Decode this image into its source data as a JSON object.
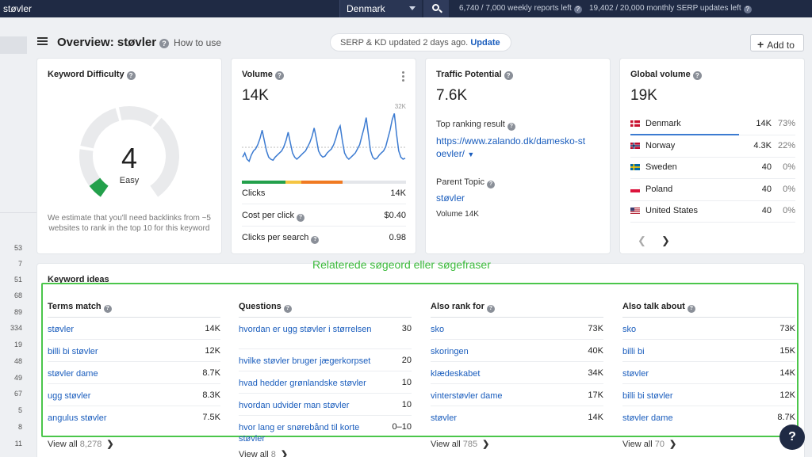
{
  "topbar": {
    "search_value": "støvler",
    "country": "Denmark",
    "weekly_quota": "6,740 / 7,000 weekly reports left",
    "monthly_quota": "19,402 / 20,000 monthly SERP updates left"
  },
  "rail_numbers": [
    "53",
    "7",
    "51",
    "68",
    "89",
    "334",
    "19",
    "48",
    "49",
    "67",
    "5",
    "8",
    "11"
  ],
  "header": {
    "title": "Overview: støvler",
    "how_to_use": "How to use",
    "serp_text": "SERP & KD updated 2 days ago.",
    "serp_update": "Update",
    "add_to": "Add to"
  },
  "kd": {
    "title": "Keyword Difficulty",
    "value": "4",
    "label": "Easy",
    "note": "We estimate that you'll need backlinks from ~5 websites to rank in the top 10 for this keyword",
    "score": 4
  },
  "volume": {
    "title": "Volume",
    "value": "14K",
    "chart_max_label": "32K",
    "rows": [
      {
        "label": "Clicks",
        "value": "14K"
      },
      {
        "label": "Cost per click",
        "value": "$0.40"
      },
      {
        "label": "Clicks per search",
        "value": "0.98"
      }
    ]
  },
  "traffic": {
    "title": "Traffic Potential",
    "value": "7.6K",
    "top_ranking_label": "Top ranking result",
    "top_ranking_url": "https://www.zalando.dk/damesko-støvler/",
    "top_ranking_url_line1": "https://www.zalando.dk/damesko-st",
    "top_ranking_url_line2": "oevler/",
    "parent_topic_label": "Parent Topic",
    "parent_topic": "støvler",
    "parent_volume": "Volume 14K"
  },
  "global": {
    "title": "Global volume",
    "value": "19K",
    "countries": [
      {
        "name": "Denmark",
        "value": "14K",
        "pct": "73%",
        "share": 0.73
      },
      {
        "name": "Norway",
        "value": "4.3K",
        "pct": "22%",
        "share": 0.22
      },
      {
        "name": "Sweden",
        "value": "40",
        "pct": "0%",
        "share": 0
      },
      {
        "name": "Poland",
        "value": "40",
        "pct": "0%",
        "share": 0
      },
      {
        "name": "United States",
        "value": "40",
        "pct": "0%",
        "share": 0
      }
    ]
  },
  "annotation": "Relaterede søgeord eller søgefraser",
  "ideas": {
    "title": "Keyword ideas",
    "view_all": "View all",
    "columns": [
      {
        "title": "Terms match",
        "count": "8,278",
        "rows": [
          {
            "kw": "støvler",
            "v": "14K"
          },
          {
            "kw": "billi bi støvler",
            "v": "12K"
          },
          {
            "kw": "støvler dame",
            "v": "8.7K"
          },
          {
            "kw": "ugg støvler",
            "v": "8.3K"
          },
          {
            "kw": "angulus støvler",
            "v": "7.5K"
          }
        ]
      },
      {
        "title": "Questions",
        "count": "8",
        "rows": [
          {
            "kw": "hvordan er ugg støvler i størrelsen",
            "v": "30"
          },
          {
            "kw": "hvilke støvler bruger jægerkorpset",
            "v": "20"
          },
          {
            "kw": "hvad hedder grønlandske støvler",
            "v": "10"
          },
          {
            "kw": "hvordan udvider man støvler",
            "v": "10"
          },
          {
            "kw": "hvor lang er snørebånd til korte støvler",
            "v": "0–10"
          }
        ]
      },
      {
        "title": "Also rank for",
        "count": "785",
        "rows": [
          {
            "kw": "sko",
            "v": "73K"
          },
          {
            "kw": "skoringen",
            "v": "40K"
          },
          {
            "kw": "klædeskabet",
            "v": "34K"
          },
          {
            "kw": "vinterstøvler dame",
            "v": "17K"
          },
          {
            "kw": "støvler",
            "v": "14K"
          }
        ]
      },
      {
        "title": "Also talk about",
        "count": "70",
        "rows": [
          {
            "kw": "sko",
            "v": "73K"
          },
          {
            "kw": "billi bi",
            "v": "15K"
          },
          {
            "kw": "støvler",
            "v": "14K"
          },
          {
            "kw": "billi bi støvler",
            "v": "12K"
          },
          {
            "kw": "støvler dame",
            "v": "8.7K"
          }
        ]
      }
    ]
  },
  "chart_data": {
    "type": "line",
    "title": "",
    "ymax_label": "32K",
    "ylim": [
      0,
      32000
    ],
    "values": [
      9000,
      11000,
      8000,
      7000,
      10000,
      12000,
      13000,
      15000,
      18000,
      22000,
      17000,
      12000,
      9000,
      8000,
      7500,
      9000,
      10000,
      11000,
      12000,
      14000,
      17000,
      21000,
      16000,
      11000,
      9000,
      8000,
      9000,
      10000,
      11000,
      12000,
      14000,
      16000,
      19000,
      23000,
      18000,
      12000,
      10000,
      9000,
      9500,
      11000,
      12000,
      13000,
      15000,
      18000,
      22000,
      24000,
      17000,
      11000,
      9000,
      8000,
      9000,
      10000,
      11000,
      13000,
      15000,
      19000,
      23000,
      28000,
      20000,
      12000,
      9000,
      8000,
      8500,
      10000,
      11000,
      12000,
      14000,
      18000,
      22000,
      27000,
      30000,
      20000,
      12000,
      9000,
      8000,
      8500
    ]
  },
  "colors": {
    "accent": "#1a5dbd",
    "kd_green": "#23a04b",
    "annotation_green": "#4bc64b",
    "line": "#3c7bd1"
  }
}
